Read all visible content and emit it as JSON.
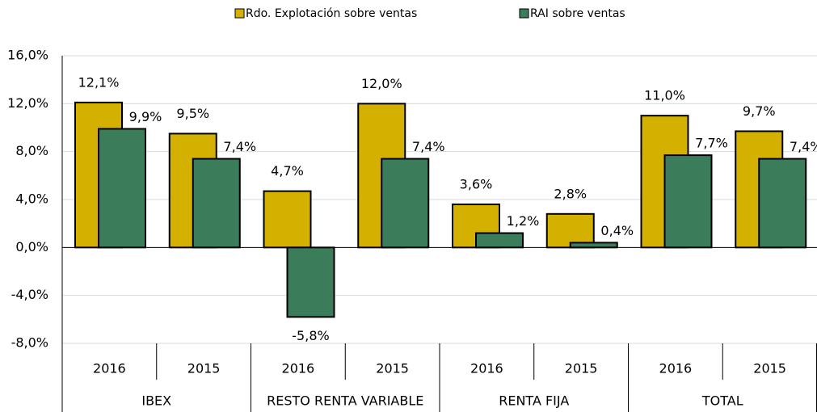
{
  "chart_data": {
    "type": "bar",
    "categories": [
      "2016",
      "2015",
      "2016",
      "2015",
      "2016",
      "2015",
      "2016",
      "2015"
    ],
    "groups": [
      "IBEX",
      "RESTO RENTA VARIABLE",
      "RENTA FIJA",
      "TOTAL"
    ],
    "series": [
      {
        "name": "Rdo. Explotación sobre ventas",
        "color": "#d4b000",
        "values": [
          12.1,
          9.5,
          4.7,
          12.0,
          3.6,
          2.8,
          11.0,
          9.7
        ],
        "value_labels": [
          "12,1%",
          "9,5%",
          "4,7%",
          "12,0%",
          "3,6%",
          "2,8%",
          "11,0%",
          "9,7%"
        ]
      },
      {
        "name": "RAI sobre ventas",
        "color": "#3b7d5a",
        "values": [
          9.9,
          7.4,
          -5.8,
          7.4,
          1.2,
          0.4,
          7.7,
          7.4
        ],
        "value_labels": [
          "9,9%",
          "7,4%",
          "-5,8%",
          "7,4%",
          "1,2%",
          "0,4%",
          "7,7%",
          "7,4%"
        ]
      }
    ],
    "ylim": [
      -8,
      16
    ],
    "yticks": [
      {
        "value": -8,
        "label": "-8,0%"
      },
      {
        "value": -4,
        "label": "-4,0%"
      },
      {
        "value": 0,
        "label": "0,0%"
      },
      {
        "value": 4,
        "label": "4,0%"
      },
      {
        "value": 8,
        "label": "8,0%"
      },
      {
        "value": 12,
        "label": "12,0%"
      },
      {
        "value": 16,
        "label": "16,0%"
      }
    ],
    "grid": true,
    "legend": "top"
  }
}
